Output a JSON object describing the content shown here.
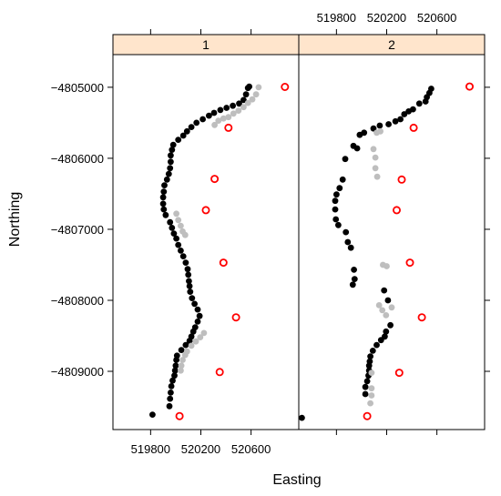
{
  "chart_data": {
    "type": "scatter",
    "xlabel": "Easting",
    "ylabel": "Northing",
    "xlim": [
      519500,
      520980
    ],
    "ylim": [
      -4809820,
      -4804540
    ],
    "grid": false,
    "x_ticks": [
      519800,
      520200,
      520600
    ],
    "y_ticks": [
      -4805000,
      -4806000,
      -4807000,
      -4808000,
      -4809000
    ],
    "x_tick_labels": [
      "519800",
      "520200",
      "520600"
    ],
    "y_tick_labels": [
      "−4805000",
      "−4806000",
      "−4807000",
      "−4808000",
      "−4809000"
    ],
    "colors": {
      "strip": "#ffe5cc",
      "black": "#000000",
      "grey": "#bebebe",
      "red": "#ff0000"
    },
    "panels": [
      {
        "strip": "1",
        "series": [
          {
            "color": "black",
            "style": "filled",
            "points": [
              [
                519815,
                -4809610
              ],
              [
                519950,
                -4809490
              ],
              [
                519955,
                -4809385
              ],
              [
                519960,
                -4809300
              ],
              [
                519965,
                -4809210
              ],
              [
                519975,
                -4809130
              ],
              [
                519990,
                -4809060
              ],
              [
                519995,
                -4808990
              ],
              [
                520000,
                -4808920
              ],
              [
                520005,
                -4808840
              ],
              [
                520010,
                -4808780
              ],
              [
                520045,
                -4808700
              ],
              [
                520080,
                -4808630
              ],
              [
                520110,
                -4808570
              ],
              [
                520125,
                -4808510
              ],
              [
                520140,
                -4808440
              ],
              [
                520155,
                -4808380
              ],
              [
                520175,
                -4808300
              ],
              [
                520190,
                -4808220
              ],
              [
                520175,
                -4808130
              ],
              [
                520150,
                -4808050
              ],
              [
                520130,
                -4807970
              ],
              [
                520115,
                -4807880
              ],
              [
                520110,
                -4807800
              ],
              [
                520105,
                -4807730
              ],
              [
                520100,
                -4807640
              ],
              [
                520095,
                -4807560
              ],
              [
                520080,
                -4807470
              ],
              [
                520060,
                -4807380
              ],
              [
                520040,
                -4807300
              ],
              [
                520020,
                -4807220
              ],
              [
                520005,
                -4807130
              ],
              [
                519985,
                -4807060
              ],
              [
                519970,
                -4806980
              ],
              [
                519955,
                -4806900
              ],
              [
                519920,
                -4806800
              ],
              [
                519905,
                -4806720
              ],
              [
                519900,
                -4806640
              ],
              [
                519900,
                -4806550
              ],
              [
                519905,
                -4806470
              ],
              [
                519910,
                -4806380
              ],
              [
                519930,
                -4806300
              ],
              [
                519945,
                -4806220
              ],
              [
                519955,
                -4806140
              ],
              [
                519960,
                -4806050
              ],
              [
                519960,
                -4805960
              ],
              [
                519970,
                -4805880
              ],
              [
                519980,
                -4805810
              ],
              [
                520020,
                -4805740
              ],
              [
                520060,
                -4805680
              ],
              [
                520090,
                -4805620
              ],
              [
                520125,
                -4805560
              ],
              [
                520165,
                -4805500
              ],
              [
                520215,
                -4805450
              ],
              [
                520265,
                -4805400
              ],
              [
                520305,
                -4805360
              ],
              [
                520355,
                -4805320
              ],
              [
                520405,
                -4805290
              ],
              [
                520455,
                -4805260
              ],
              [
                520505,
                -4805230
              ],
              [
                520540,
                -4805180
              ],
              [
                520560,
                -4805100
              ],
              [
                520575,
                -4805010
              ],
              [
                520585,
                -4804990
              ]
            ]
          },
          {
            "color": "grey",
            "style": "filled",
            "points": [
              [
                520310,
                -4805530
              ],
              [
                520340,
                -4805470
              ],
              [
                520380,
                -4805440
              ],
              [
                520420,
                -4805420
              ],
              [
                520460,
                -4805370
              ],
              [
                520500,
                -4805330
              ],
              [
                520540,
                -4805280
              ],
              [
                520575,
                -4805220
              ],
              [
                520610,
                -4805170
              ],
              [
                520640,
                -4805100
              ],
              [
                520660,
                -4805000
              ],
              [
                520005,
                -4806780
              ],
              [
                520020,
                -4806870
              ],
              [
                520040,
                -4806950
              ],
              [
                520055,
                -4807030
              ],
              [
                520075,
                -4807080
              ],
              [
                520040,
                -4808990
              ],
              [
                520045,
                -4808920
              ],
              [
                520055,
                -4808840
              ],
              [
                520075,
                -4808770
              ],
              [
                520090,
                -4808720
              ],
              [
                520125,
                -4808640
              ],
              [
                520160,
                -4808580
              ],
              [
                520195,
                -4808520
              ],
              [
                520225,
                -4808460
              ]
            ]
          },
          {
            "color": "red",
            "style": "open",
            "points": [
              [
                520870,
                -4804995
              ],
              [
                520420,
                -4805570
              ],
              [
                520310,
                -4806290
              ],
              [
                520240,
                -4806730
              ],
              [
                520380,
                -4807470
              ],
              [
                520480,
                -4808240
              ],
              [
                520350,
                -4809010
              ],
              [
                520030,
                -4809630
              ]
            ]
          }
        ]
      },
      {
        "strip": "2",
        "series": [
          {
            "color": "black",
            "style": "filled",
            "points": [
              [
                519525,
                -4809655
              ],
              [
                520030,
                -4809320
              ],
              [
                520030,
                -4809220
              ],
              [
                520045,
                -4809140
              ],
              [
                520055,
                -4809060
              ],
              [
                520060,
                -4808990
              ],
              [
                520060,
                -4808920
              ],
              [
                520065,
                -4808860
              ],
              [
                520070,
                -4808790
              ],
              [
                520090,
                -4808710
              ],
              [
                520120,
                -4808630
              ],
              [
                520155,
                -4808560
              ],
              [
                520185,
                -4808510
              ],
              [
                520195,
                -4808440
              ],
              [
                520230,
                -4808350
              ],
              [
                520210,
                -4808000
              ],
              [
                520180,
                -4807860
              ],
              [
                519930,
                -4807780
              ],
              [
                519945,
                -4807700
              ],
              [
                519940,
                -4807570
              ],
              [
                519915,
                -4807260
              ],
              [
                519890,
                -4807180
              ],
              [
                519875,
                -4807040
              ],
              [
                519815,
                -4806940
              ],
              [
                519795,
                -4806860
              ],
              [
                519790,
                -4806720
              ],
              [
                519790,
                -4806600
              ],
              [
                519800,
                -4806510
              ],
              [
                519825,
                -4806420
              ],
              [
                519850,
                -4806300
              ],
              [
                519870,
                -4806010
              ],
              [
                519935,
                -4805825
              ],
              [
                519965,
                -4805860
              ],
              [
                519985,
                -4805670
              ],
              [
                520020,
                -4805640
              ],
              [
                520095,
                -4805580
              ],
              [
                520145,
                -4805540
              ],
              [
                520215,
                -4805520
              ],
              [
                520270,
                -4805480
              ],
              [
                520310,
                -4805450
              ],
              [
                520340,
                -4805380
              ],
              [
                520375,
                -4805340
              ],
              [
                520410,
                -4805310
              ],
              [
                520460,
                -4805230
              ],
              [
                520510,
                -4805200
              ],
              [
                520520,
                -4805140
              ],
              [
                520540,
                -4805080
              ],
              [
                520555,
                -4805020
              ]
            ]
          },
          {
            "color": "grey",
            "style": "filled",
            "points": [
              [
                520120,
                -4805640
              ],
              [
                520150,
                -4805620
              ],
              [
                520095,
                -4805870
              ],
              [
                520110,
                -4805990
              ],
              [
                520110,
                -4806140
              ],
              [
                520125,
                -4806260
              ],
              [
                520170,
                -4807500
              ],
              [
                520200,
                -4807520
              ],
              [
                520140,
                -4808070
              ],
              [
                520165,
                -4808140
              ],
              [
                520195,
                -4808210
              ],
              [
                520240,
                -4808100
              ],
              [
                520080,
                -4809020
              ],
              [
                520080,
                -4809240
              ],
              [
                520080,
                -4809340
              ],
              [
                520070,
                -4809450
              ]
            ]
          },
          {
            "color": "red",
            "style": "open",
            "points": [
              [
                520860,
                -4804990
              ],
              [
                520415,
                -4805570
              ],
              [
                520320,
                -4806300
              ],
              [
                520280,
                -4806730
              ],
              [
                520385,
                -4807470
              ],
              [
                520480,
                -4808240
              ],
              [
                520300,
                -4809020
              ],
              [
                520045,
                -4809630
              ]
            ]
          }
        ]
      }
    ]
  }
}
